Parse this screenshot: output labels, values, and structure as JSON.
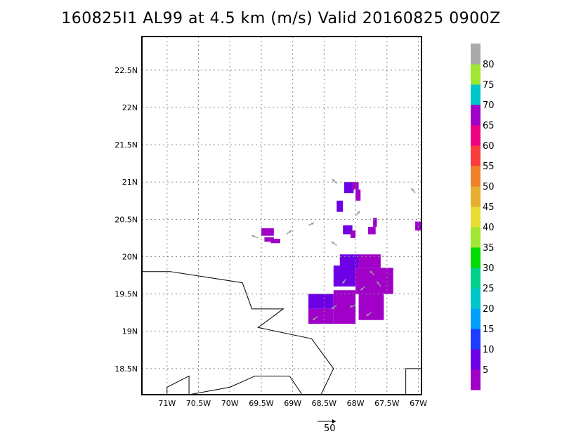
{
  "title": "160825I1 AL99 at 4.5 km (m/s) Valid 20160825 0900Z",
  "map": {
    "lon_range": [
      -71.4,
      -66.95
    ],
    "lat_range": [
      18.15,
      22.95
    ],
    "lon_ticks": [
      {
        "v": -71,
        "label": "71W"
      },
      {
        "v": -70.5,
        "label": "70.5W"
      },
      {
        "v": -70,
        "label": "70W"
      },
      {
        "v": -69.5,
        "label": "69.5W"
      },
      {
        "v": -69,
        "label": "69W"
      },
      {
        "v": -68.5,
        "label": "68.5W"
      },
      {
        "v": -68,
        "label": "68W"
      },
      {
        "v": -67.5,
        "label": "67.5W"
      },
      {
        "v": -67,
        "label": "67W"
      }
    ],
    "lat_ticks": [
      {
        "v": 18.5,
        "label": "18.5N"
      },
      {
        "v": 19,
        "label": "19N"
      },
      {
        "v": 19.5,
        "label": "19.5N"
      },
      {
        "v": 20,
        "label": "20N"
      },
      {
        "v": 20.5,
        "label": "20.5N"
      },
      {
        "v": 21,
        "label": "21N"
      },
      {
        "v": 21.5,
        "label": "21.5N"
      },
      {
        "v": 22,
        "label": "22N"
      },
      {
        "v": 22.5,
        "label": "22.5N"
      }
    ],
    "grid": true,
    "coastlines": [
      [
        [
          -71.4,
          19.8
        ],
        [
          -70.95,
          19.8
        ],
        [
          -69.8,
          19.65
        ],
        [
          -69.65,
          19.3
        ],
        [
          -69.15,
          19.3
        ],
        [
          -69.55,
          19.05
        ],
        [
          -68.7,
          18.9
        ],
        [
          -68.35,
          18.5
        ],
        [
          -68.55,
          18.15
        ]
      ],
      [
        [
          -71.0,
          18.15
        ],
        [
          -71.0,
          18.25
        ],
        [
          -70.65,
          18.4
        ],
        [
          -70.65,
          18.15
        ],
        [
          -70.0,
          18.25
        ],
        [
          -69.6,
          18.4
        ],
        [
          -69.05,
          18.4
        ],
        [
          -68.85,
          18.15
        ]
      ],
      [
        [
          -67.2,
          18.15
        ],
        [
          -67.2,
          18.5
        ],
        [
          -66.95,
          18.5
        ]
      ]
    ],
    "wind_cells": [
      {
        "lon": -69.5,
        "lat": 20.28,
        "w": 0.2,
        "h": 0.1,
        "level": 5
      },
      {
        "lon": -69.45,
        "lat": 20.2,
        "w": 0.15,
        "h": 0.06,
        "level": 5
      },
      {
        "lon": -69.35,
        "lat": 20.18,
        "w": 0.15,
        "h": 0.06,
        "level": 5
      },
      {
        "lon": -68.18,
        "lat": 20.85,
        "w": 0.15,
        "h": 0.15,
        "level": 10
      },
      {
        "lon": -68.05,
        "lat": 20.9,
        "w": 0.1,
        "h": 0.1,
        "level": 5
      },
      {
        "lon": -68.0,
        "lat": 20.75,
        "w": 0.08,
        "h": 0.15,
        "level": 5
      },
      {
        "lon": -68.3,
        "lat": 20.6,
        "w": 0.1,
        "h": 0.15,
        "level": 10
      },
      {
        "lon": -68.2,
        "lat": 20.3,
        "w": 0.15,
        "h": 0.12,
        "level": 10
      },
      {
        "lon": -68.08,
        "lat": 20.25,
        "w": 0.08,
        "h": 0.1,
        "level": 5
      },
      {
        "lon": -67.8,
        "lat": 20.3,
        "w": 0.12,
        "h": 0.1,
        "level": 5
      },
      {
        "lon": -67.72,
        "lat": 20.4,
        "w": 0.06,
        "h": 0.12,
        "level": 5
      },
      {
        "lon": -67.05,
        "lat": 20.35,
        "w": 0.1,
        "h": 0.12,
        "level": 5
      },
      {
        "lon": -68.25,
        "lat": 19.85,
        "w": 0.3,
        "h": 0.18,
        "level": 10
      },
      {
        "lon": -67.95,
        "lat": 19.85,
        "w": 0.35,
        "h": 0.18,
        "level": 5
      },
      {
        "lon": -68.35,
        "lat": 19.6,
        "w": 0.35,
        "h": 0.28,
        "level": 10
      },
      {
        "lon": -68.0,
        "lat": 19.5,
        "w": 0.6,
        "h": 0.35,
        "level": 5
      },
      {
        "lon": -68.75,
        "lat": 19.3,
        "w": 0.4,
        "h": 0.2,
        "level": 10
      },
      {
        "lon": -68.35,
        "lat": 19.1,
        "w": 0.35,
        "h": 0.45,
        "level": 5
      },
      {
        "lon": -68.75,
        "lat": 19.1,
        "w": 0.4,
        "h": 0.2,
        "level": 5
      },
      {
        "lon": -67.95,
        "lat": 19.15,
        "w": 0.4,
        "h": 0.35,
        "level": 5
      }
    ],
    "wind_arrows": [
      {
        "lon": -69.55,
        "lat": 20.25,
        "dx": -1,
        "dy": 0.4
      },
      {
        "lon": -69.1,
        "lat": 20.3,
        "dx": 0.8,
        "dy": 0.6
      },
      {
        "lon": -68.75,
        "lat": 20.42,
        "dx": 0.9,
        "dy": 0.4
      },
      {
        "lon": -68.3,
        "lat": 20.98,
        "dx": -0.7,
        "dy": 0.7
      },
      {
        "lon": -68.0,
        "lat": 20.55,
        "dx": 0.7,
        "dy": 0.7
      },
      {
        "lon": -67.05,
        "lat": 20.85,
        "dx": -0.6,
        "dy": 0.8
      },
      {
        "lon": -68.3,
        "lat": 20.15,
        "dx": -0.8,
        "dy": 0.6
      },
      {
        "lon": -67.7,
        "lat": 19.75,
        "dx": -0.7,
        "dy": 0.7
      },
      {
        "lon": -67.6,
        "lat": 19.6,
        "dx": -0.6,
        "dy": 0.8
      },
      {
        "lon": -68.6,
        "lat": 19.2,
        "dx": -0.8,
        "dy": -0.6
      },
      {
        "lon": -68.3,
        "lat": 19.35,
        "dx": -0.8,
        "dy": -0.6
      },
      {
        "lon": -68.0,
        "lat": 19.35,
        "dx": -0.9,
        "dy": -0.3
      },
      {
        "lon": -67.85,
        "lat": 19.6,
        "dx": -0.7,
        "dy": -0.6
      },
      {
        "lon": -68.15,
        "lat": 19.7,
        "dx": -0.6,
        "dy": -0.7
      },
      {
        "lon": -67.75,
        "lat": 19.25,
        "dx": -0.8,
        "dy": -0.5
      }
    ],
    "reference_vector": {
      "label": "50"
    }
  },
  "colorbar": {
    "levels": [
      "5",
      "10",
      "15",
      "20",
      "25",
      "30",
      "35",
      "40",
      "45",
      "50",
      "55",
      "60",
      "65",
      "70",
      "75",
      "80"
    ],
    "colors": [
      "#a000c8",
      "#6e00e6",
      "#1e3cff",
      "#00a0ff",
      "#00c8c8",
      "#00d28c",
      "#00dc00",
      "#a0e632",
      "#e6dc32",
      "#e6af2d",
      "#f08228",
      "#fa3c3c",
      "#f00082",
      "#a000c8",
      "#00c8c8",
      "#a0e632",
      "#aaaaaa"
    ]
  }
}
